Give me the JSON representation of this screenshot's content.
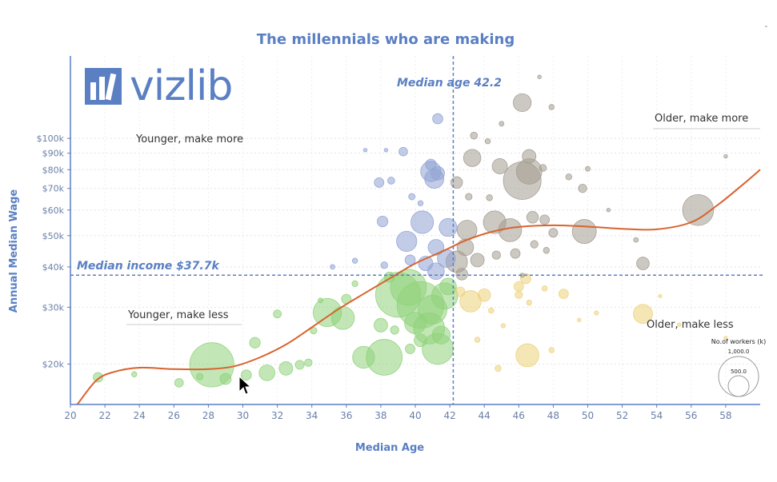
{
  "chart_data": {
    "type": "scatter",
    "subtype": "bubble",
    "title": "The millennials who are making",
    "xlabel": "Median Age",
    "ylabel": "Annual Median Wage",
    "xlim": [
      20,
      60
    ],
    "ylim": [
      15000,
      180000
    ],
    "yscale": "log",
    "x_ticks": [
      20,
      22,
      24,
      26,
      28,
      30,
      32,
      34,
      36,
      38,
      40,
      42,
      44,
      46,
      48,
      50,
      52,
      54,
      56,
      58
    ],
    "y_ticks": [
      {
        "value": 20000,
        "label": "$20k"
      },
      {
        "value": 30000,
        "label": "$30k"
      },
      {
        "value": 40000,
        "label": "$40k"
      },
      {
        "value": 50000,
        "label": "$50k"
      },
      {
        "value": 60000,
        "label": "$60k"
      },
      {
        "value": 70000,
        "label": "$70k"
      },
      {
        "value": 80000,
        "label": "$80k"
      },
      {
        "value": 90000,
        "label": "$90k"
      },
      {
        "value": 100000,
        "label": "$100k"
      }
    ],
    "median_age": {
      "value": 42.2,
      "label": "Median age 42.2"
    },
    "median_income": {
      "value": 37700,
      "label": "Median income $37.7k"
    },
    "quadrants": {
      "top_left": "Younger, make more",
      "top_right": "Older, make more",
      "bottom_left": "Younger, make less",
      "bottom_right": "Older, make less"
    },
    "size_legend": {
      "title": "No.of workers (k)",
      "items": [
        {
          "value": 1000,
          "label": "1,000.0"
        },
        {
          "value": 500,
          "label": "500.0"
        }
      ]
    },
    "colors": {
      "younger_more": "#8fa2d4",
      "older_more": "#a39a8f",
      "younger_less": "#8fd17a",
      "older_less": "#ecd27a",
      "trend": "#d9632e",
      "axis": "#5a7fc3"
    },
    "trend_line": {
      "x": [
        20.4,
        21.5,
        22.5,
        24,
        26,
        28,
        29.5,
        31,
        32.5,
        34,
        35.5,
        37,
        38.5,
        40,
        41.5,
        43,
        44.5,
        46,
        48,
        50,
        52,
        54,
        56,
        57.5,
        59,
        60
      ],
      "y": [
        15000,
        17800,
        18900,
        19500,
        19300,
        19300,
        19700,
        21000,
        23000,
        26000,
        29500,
        33000,
        36800,
        41000,
        44500,
        48500,
        51500,
        53200,
        53800,
        53300,
        52500,
        52300,
        55000,
        62000,
        72000,
        80000
      ]
    },
    "bubbles": [
      {
        "x": 21.6,
        "y": 18200,
        "s": 40,
        "g": "younger_less"
      },
      {
        "x": 23.7,
        "y": 18600,
        "s": 12,
        "g": "younger_less"
      },
      {
        "x": 26.3,
        "y": 17500,
        "s": 32,
        "g": "younger_less"
      },
      {
        "x": 27.5,
        "y": 18300,
        "s": 20,
        "g": "younger_less"
      },
      {
        "x": 28.2,
        "y": 19900,
        "s": 850,
        "g": "younger_less"
      },
      {
        "x": 29.0,
        "y": 18000,
        "s": 55,
        "g": "younger_less"
      },
      {
        "x": 30.2,
        "y": 18500,
        "s": 45,
        "g": "younger_less"
      },
      {
        "x": 31.4,
        "y": 18800,
        "s": 110,
        "g": "younger_less"
      },
      {
        "x": 30.7,
        "y": 23300,
        "s": 50,
        "g": "younger_less"
      },
      {
        "x": 32.5,
        "y": 19400,
        "s": 80,
        "g": "younger_less"
      },
      {
        "x": 33.3,
        "y": 19900,
        "s": 35,
        "g": "younger_less"
      },
      {
        "x": 33.8,
        "y": 20200,
        "s": 25,
        "g": "younger_less"
      },
      {
        "x": 32.0,
        "y": 28600,
        "s": 28,
        "g": "younger_less"
      },
      {
        "x": 34.9,
        "y": 28900,
        "s": 350,
        "g": "younger_less"
      },
      {
        "x": 35.8,
        "y": 27800,
        "s": 230,
        "g": "younger_less"
      },
      {
        "x": 36.0,
        "y": 31800,
        "s": 40,
        "g": "younger_less"
      },
      {
        "x": 34.1,
        "y": 25400,
        "s": 20,
        "g": "younger_less"
      },
      {
        "x": 37.0,
        "y": 21000,
        "s": 210,
        "g": "younger_less"
      },
      {
        "x": 38.2,
        "y": 21000,
        "s": 560,
        "g": "younger_less"
      },
      {
        "x": 38.0,
        "y": 26400,
        "s": 80,
        "g": "younger_less"
      },
      {
        "x": 38.8,
        "y": 25500,
        "s": 30,
        "g": "younger_less"
      },
      {
        "x": 39.0,
        "y": 32800,
        "s": 880,
        "g": "younger_less"
      },
      {
        "x": 39.6,
        "y": 34600,
        "s": 560,
        "g": "younger_less"
      },
      {
        "x": 40.3,
        "y": 30500,
        "s": 950,
        "g": "younger_less"
      },
      {
        "x": 40.0,
        "y": 26800,
        "s": 200,
        "g": "younger_less"
      },
      {
        "x": 40.8,
        "y": 25800,
        "s": 420,
        "g": "younger_less"
      },
      {
        "x": 41.3,
        "y": 22300,
        "s": 420,
        "g": "younger_less"
      },
      {
        "x": 41.0,
        "y": 29500,
        "s": 360,
        "g": "younger_less"
      },
      {
        "x": 41.7,
        "y": 32500,
        "s": 300,
        "g": "younger_less"
      },
      {
        "x": 41.9,
        "y": 34800,
        "s": 120,
        "g": "younger_less"
      },
      {
        "x": 40.3,
        "y": 23700,
        "s": 70,
        "g": "younger_less"
      },
      {
        "x": 41.5,
        "y": 24600,
        "s": 140,
        "g": "younger_less"
      },
      {
        "x": 39.7,
        "y": 22300,
        "s": 40,
        "g": "younger_less"
      },
      {
        "x": 36.5,
        "y": 35500,
        "s": 15,
        "g": "younger_less"
      },
      {
        "x": 34.5,
        "y": 31500,
        "s": 10,
        "g": "younger_less"
      },
      {
        "x": 38.5,
        "y": 37200,
        "s": 45,
        "g": "younger_less"
      },
      {
        "x": 40.9,
        "y": 83000,
        "s": 50,
        "g": "younger_more"
      },
      {
        "x": 41.3,
        "y": 115000,
        "s": 45,
        "g": "younger_more"
      },
      {
        "x": 39.3,
        "y": 91000,
        "s": 32,
        "g": "younger_more"
      },
      {
        "x": 38.3,
        "y": 92000,
        "s": 6,
        "g": "younger_more"
      },
      {
        "x": 40.9,
        "y": 79000,
        "s": 180,
        "g": "younger_more"
      },
      {
        "x": 41.1,
        "y": 75000,
        "s": 160,
        "g": "younger_more"
      },
      {
        "x": 41.3,
        "y": 78000,
        "s": 80,
        "g": "younger_more"
      },
      {
        "x": 37.9,
        "y": 73000,
        "s": 40,
        "g": "younger_more"
      },
      {
        "x": 38.6,
        "y": 74000,
        "s": 22,
        "g": "younger_more"
      },
      {
        "x": 38.1,
        "y": 55300,
        "s": 50,
        "g": "younger_more"
      },
      {
        "x": 39.8,
        "y": 66000,
        "s": 18,
        "g": "younger_more"
      },
      {
        "x": 40.3,
        "y": 63000,
        "s": 12,
        "g": "younger_more"
      },
      {
        "x": 40.4,
        "y": 55000,
        "s": 220,
        "g": "younger_more"
      },
      {
        "x": 39.5,
        "y": 48000,
        "s": 180,
        "g": "younger_more"
      },
      {
        "x": 41.9,
        "y": 53000,
        "s": 140,
        "g": "younger_more"
      },
      {
        "x": 41.2,
        "y": 46000,
        "s": 110,
        "g": "younger_more"
      },
      {
        "x": 41.8,
        "y": 42500,
        "s": 140,
        "g": "younger_more"
      },
      {
        "x": 40.6,
        "y": 41000,
        "s": 90,
        "g": "younger_more"
      },
      {
        "x": 41.2,
        "y": 38800,
        "s": 120,
        "g": "younger_more"
      },
      {
        "x": 39.7,
        "y": 42000,
        "s": 45,
        "g": "younger_more"
      },
      {
        "x": 38.2,
        "y": 40500,
        "s": 20,
        "g": "younger_more"
      },
      {
        "x": 36.5,
        "y": 41800,
        "s": 12,
        "g": "younger_more"
      },
      {
        "x": 35.2,
        "y": 40000,
        "s": 10,
        "g": "younger_more"
      },
      {
        "x": 37.1,
        "y": 92000,
        "s": 6,
        "g": "younger_more"
      },
      {
        "x": 47.2,
        "y": 155000,
        "s": 6,
        "g": "older_more"
      },
      {
        "x": 46.2,
        "y": 129000,
        "s": 140,
        "g": "older_more"
      },
      {
        "x": 47.9,
        "y": 125000,
        "s": 12,
        "g": "older_more"
      },
      {
        "x": 45.0,
        "y": 111000,
        "s": 10,
        "g": "older_more"
      },
      {
        "x": 43.4,
        "y": 102000,
        "s": 22,
        "g": "older_more"
      },
      {
        "x": 44.2,
        "y": 98000,
        "s": 12,
        "g": "older_more"
      },
      {
        "x": 46.6,
        "y": 88000,
        "s": 80,
        "g": "older_more"
      },
      {
        "x": 43.3,
        "y": 87000,
        "s": 130,
        "g": "older_more"
      },
      {
        "x": 44.9,
        "y": 82000,
        "s": 100,
        "g": "older_more"
      },
      {
        "x": 46.6,
        "y": 79000,
        "s": 280,
        "g": "older_more"
      },
      {
        "x": 46.2,
        "y": 74000,
        "s": 620,
        "g": "older_more"
      },
      {
        "x": 47.4,
        "y": 81000,
        "s": 22,
        "g": "older_more"
      },
      {
        "x": 42.4,
        "y": 73000,
        "s": 60,
        "g": "older_more"
      },
      {
        "x": 43.1,
        "y": 66000,
        "s": 20,
        "g": "older_more"
      },
      {
        "x": 44.3,
        "y": 65500,
        "s": 16,
        "g": "older_more"
      },
      {
        "x": 48.9,
        "y": 76000,
        "s": 16,
        "g": "older_more"
      },
      {
        "x": 49.7,
        "y": 70000,
        "s": 30,
        "g": "older_more"
      },
      {
        "x": 50.0,
        "y": 80500,
        "s": 10,
        "g": "older_more"
      },
      {
        "x": 51.2,
        "y": 60000,
        "s": 6,
        "g": "older_more"
      },
      {
        "x": 56.4,
        "y": 60000,
        "s": 420,
        "g": "older_more"
      },
      {
        "x": 58.0,
        "y": 88000,
        "s": 6,
        "g": "older_more"
      },
      {
        "x": 43.0,
        "y": 52000,
        "s": 170,
        "g": "older_more"
      },
      {
        "x": 44.6,
        "y": 55000,
        "s": 220,
        "g": "older_more"
      },
      {
        "x": 45.5,
        "y": 52000,
        "s": 230,
        "g": "older_more"
      },
      {
        "x": 46.8,
        "y": 57000,
        "s": 60,
        "g": "older_more"
      },
      {
        "x": 47.5,
        "y": 56000,
        "s": 40,
        "g": "older_more"
      },
      {
        "x": 49.8,
        "y": 51500,
        "s": 250,
        "g": "older_more"
      },
      {
        "x": 48.0,
        "y": 51000,
        "s": 35,
        "g": "older_more"
      },
      {
        "x": 42.9,
        "y": 46000,
        "s": 120,
        "g": "older_more"
      },
      {
        "x": 43.6,
        "y": 42000,
        "s": 80,
        "g": "older_more"
      },
      {
        "x": 42.4,
        "y": 41500,
        "s": 200,
        "g": "older_more"
      },
      {
        "x": 44.7,
        "y": 43500,
        "s": 30,
        "g": "older_more"
      },
      {
        "x": 45.8,
        "y": 44000,
        "s": 40,
        "g": "older_more"
      },
      {
        "x": 46.9,
        "y": 47000,
        "s": 25,
        "g": "older_more"
      },
      {
        "x": 47.6,
        "y": 45000,
        "s": 16,
        "g": "older_more"
      },
      {
        "x": 53.2,
        "y": 41000,
        "s": 70,
        "g": "older_more"
      },
      {
        "x": 52.8,
        "y": 48500,
        "s": 10,
        "g": "older_more"
      },
      {
        "x": 42.7,
        "y": 38000,
        "s": 60,
        "g": "older_more"
      },
      {
        "x": 46.2,
        "y": 37700,
        "s": 8,
        "g": "older_more"
      },
      {
        "x": 43.2,
        "y": 31300,
        "s": 200,
        "g": "older_less"
      },
      {
        "x": 44.0,
        "y": 32700,
        "s": 70,
        "g": "older_less"
      },
      {
        "x": 42.6,
        "y": 33500,
        "s": 40,
        "g": "older_less"
      },
      {
        "x": 46.0,
        "y": 34800,
        "s": 40,
        "g": "older_less"
      },
      {
        "x": 46.4,
        "y": 36800,
        "s": 45,
        "g": "older_less"
      },
      {
        "x": 47.5,
        "y": 34300,
        "s": 12,
        "g": "older_less"
      },
      {
        "x": 48.6,
        "y": 33000,
        "s": 40,
        "g": "older_less"
      },
      {
        "x": 46.6,
        "y": 31000,
        "s": 12,
        "g": "older_less"
      },
      {
        "x": 44.4,
        "y": 29300,
        "s": 12,
        "g": "older_less"
      },
      {
        "x": 45.1,
        "y": 26300,
        "s": 8,
        "g": "older_less"
      },
      {
        "x": 43.6,
        "y": 23800,
        "s": 12,
        "g": "older_less"
      },
      {
        "x": 46.5,
        "y": 21300,
        "s": 230,
        "g": "older_less"
      },
      {
        "x": 44.8,
        "y": 19400,
        "s": 16,
        "g": "older_less"
      },
      {
        "x": 47.9,
        "y": 22100,
        "s": 12,
        "g": "older_less"
      },
      {
        "x": 50.5,
        "y": 28800,
        "s": 8,
        "g": "older_less"
      },
      {
        "x": 49.5,
        "y": 27400,
        "s": 6,
        "g": "older_less"
      },
      {
        "x": 53.2,
        "y": 28600,
        "s": 160,
        "g": "older_less"
      },
      {
        "x": 54.2,
        "y": 32500,
        "s": 5,
        "g": "older_less"
      },
      {
        "x": 55.3,
        "y": 26500,
        "s": 5,
        "g": "older_less"
      },
      {
        "x": 58.0,
        "y": 24100,
        "s": 5,
        "g": "older_less"
      },
      {
        "x": 46.0,
        "y": 32800,
        "s": 25,
        "g": "older_less"
      }
    ]
  }
}
